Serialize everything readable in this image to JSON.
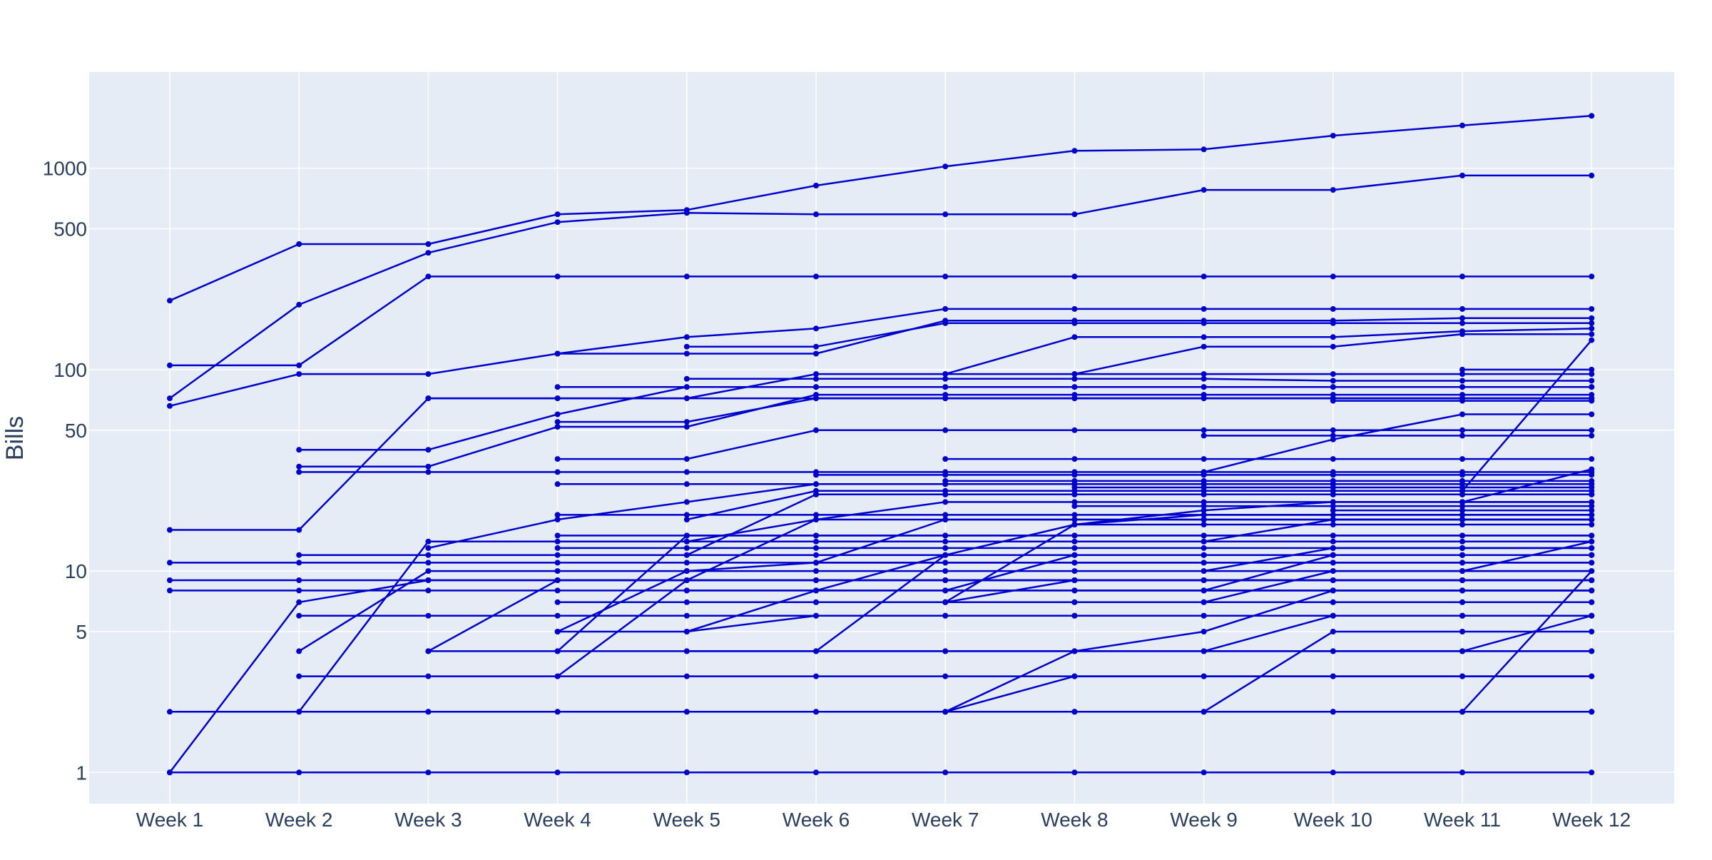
{
  "chart_data": {
    "type": "line",
    "title": "",
    "xlabel": "",
    "ylabel": "Bills",
    "y_scale": "log",
    "ylim": [
      0.7,
      3000
    ],
    "y_ticks": [
      1,
      5,
      10,
      50,
      100,
      500,
      1000
    ],
    "categories": [
      "Week 1",
      "Week 2",
      "Week 3",
      "Week 4",
      "Week 5",
      "Week 6",
      "Week 7",
      "Week 8",
      "Week 9",
      "Week 10",
      "Week 11",
      "Week 12"
    ],
    "grid": true,
    "legend": "none",
    "colors": {
      "line": "#0000cd",
      "plot_bg": "#e5ecf6",
      "grid": "#ffffff",
      "text": "#2a3f5f"
    },
    "series": [
      {
        "values": [
          220,
          420,
          420,
          590,
          620,
          820,
          1020,
          1220,
          1240,
          1450,
          1630,
          1820
        ]
      },
      {
        "values": [
          72,
          210,
          380,
          540,
          600,
          590,
          590,
          590,
          780,
          780,
          920,
          920
        ]
      },
      {
        "values": [
          105,
          105,
          290,
          290,
          290,
          290,
          290,
          290,
          290,
          290,
          290,
          290
        ]
      },
      {
        "values": [
          66,
          95,
          95,
          120,
          145,
          160,
          200,
          200,
          200,
          200,
          200,
          200
        ]
      },
      {
        "values": [
          null,
          null,
          null,
          120,
          120,
          120,
          175,
          175,
          175,
          175,
          180,
          180
        ]
      },
      {
        "values": [
          null,
          null,
          null,
          null,
          130,
          130,
          170,
          170,
          170,
          170,
          170,
          170
        ]
      },
      {
        "values": [
          null,
          null,
          null,
          null,
          null,
          null,
          95,
          145,
          145,
          145,
          155,
          160
        ]
      },
      {
        "values": [
          null,
          null,
          null,
          null,
          null,
          null,
          null,
          95,
          130,
          130,
          150,
          150
        ]
      },
      {
        "values": [
          null,
          null,
          72,
          72,
          72,
          95,
          95,
          95,
          95,
          95,
          95,
          95
        ]
      },
      {
        "values": [
          null,
          null,
          null,
          82,
          82,
          82,
          82,
          82,
          82,
          82,
          82,
          82
        ]
      },
      {
        "values": [
          null,
          40,
          40,
          60,
          82,
          82,
          82,
          82,
          82,
          82,
          82,
          82
        ]
      },
      {
        "values": [
          null,
          null,
          null,
          null,
          90,
          90,
          90,
          90,
          90,
          88,
          88,
          88
        ]
      },
      {
        "values": [
          null,
          33,
          33,
          52,
          52,
          75,
          75,
          75,
          75,
          75,
          75,
          75
        ]
      },
      {
        "values": [
          null,
          null,
          null,
          55,
          55,
          72,
          72,
          72,
          72,
          72,
          72,
          72
        ]
      },
      {
        "values": [
          null,
          null,
          null,
          null,
          null,
          72,
          72,
          72,
          72,
          72,
          72,
          72
        ]
      },
      {
        "values": [
          null,
          null,
          null,
          null,
          null,
          null,
          null,
          null,
          47,
          47,
          47,
          47
        ]
      },
      {
        "values": [
          null,
          null,
          null,
          null,
          null,
          null,
          36,
          36,
          36,
          36,
          36,
          36
        ]
      },
      {
        "values": [
          null,
          31,
          31,
          31,
          31,
          31,
          31,
          31,
          31,
          31,
          31,
          31
        ]
      },
      {
        "values": [
          null,
          null,
          null,
          36,
          36,
          50,
          50,
          50,
          50,
          50,
          50,
          50
        ]
      },
      {
        "values": [
          null,
          null,
          null,
          27,
          27,
          27,
          27,
          27,
          27,
          27,
          27,
          27
        ]
      },
      {
        "values": [
          16,
          16,
          72,
          72,
          72,
          72,
          72,
          72,
          72,
          72,
          72,
          72
        ]
      },
      {
        "values": [
          1,
          7,
          9,
          9,
          9,
          9,
          9,
          9,
          9,
          9,
          9,
          9
        ]
      },
      {
        "values": [
          null,
          2,
          2,
          2,
          2,
          2,
          2,
          2,
          2,
          2,
          2,
          2
        ]
      },
      {
        "values": [
          1,
          1,
          1,
          1,
          1,
          1,
          1,
          1,
          1,
          1,
          1,
          1
        ]
      },
      {
        "values": [
          9,
          9,
          9,
          9,
          9,
          9,
          9,
          9,
          9,
          9,
          9,
          9
        ]
      },
      {
        "values": [
          8,
          8,
          8,
          8,
          8,
          8,
          8,
          8,
          8,
          8,
          8,
          8
        ]
      },
      {
        "values": [
          11,
          11,
          11,
          11,
          11,
          11,
          11,
          11,
          11,
          11,
          11,
          11
        ]
      },
      {
        "values": [
          null,
          12,
          12,
          12,
          12,
          12,
          12,
          12,
          12,
          12,
          12,
          12
        ]
      },
      {
        "values": [
          null,
          6,
          6,
          6,
          6,
          6,
          6,
          6,
          6,
          6,
          6,
          6
        ]
      },
      {
        "values": [
          null,
          3,
          3,
          3,
          3,
          3,
          3,
          3,
          3,
          3,
          3,
          3
        ]
      },
      {
        "values": [
          null,
          4,
          10,
          10,
          10,
          10,
          10,
          10,
          10,
          10,
          10,
          10
        ]
      },
      {
        "values": [
          null,
          2,
          14,
          14,
          14,
          14,
          14,
          14,
          14,
          14,
          14,
          14
        ]
      },
      {
        "values": [
          null,
          null,
          4,
          4,
          4,
          4,
          4,
          4,
          4,
          4,
          4,
          4
        ]
      },
      {
        "values": [
          null,
          null,
          4,
          9,
          9,
          9,
          9,
          9,
          9,
          9,
          9,
          9
        ]
      },
      {
        "values": [
          2,
          2,
          2,
          2,
          2,
          2,
          2,
          2,
          2,
          2,
          2,
          2
        ]
      },
      {
        "values": [
          null,
          null,
          13,
          18,
          22,
          27,
          27,
          27,
          27,
          27,
          27,
          27
        ]
      },
      {
        "values": [
          null,
          null,
          null,
          3,
          9,
          18,
          22,
          22,
          22,
          22,
          22,
          22
        ]
      },
      {
        "values": [
          null,
          null,
          null,
          5,
          5,
          6,
          6,
          6,
          6,
          6,
          6,
          6
        ]
      },
      {
        "values": [
          null,
          null,
          null,
          4,
          15,
          15,
          15,
          15,
          15,
          15,
          15,
          15
        ]
      },
      {
        "values": [
          null,
          null,
          null,
          7,
          7,
          7,
          7,
          7,
          7,
          7,
          7,
          7
        ]
      },
      {
        "values": [
          null,
          null,
          null,
          19,
          19,
          19,
          19,
          19,
          19,
          19,
          19,
          19
        ]
      },
      {
        "values": [
          null,
          null,
          null,
          13,
          13,
          13,
          13,
          13,
          13,
          13,
          13,
          13
        ]
      },
      {
        "values": [
          null,
          null,
          null,
          15,
          15,
          15,
          15,
          15,
          15,
          15,
          15,
          15
        ]
      },
      {
        "values": [
          null,
          null,
          null,
          5,
          10,
          11,
          11,
          11,
          11,
          11,
          11,
          11
        ]
      },
      {
        "values": [
          null,
          null,
          null,
          null,
          4,
          4,
          4,
          4,
          5,
          8,
          8,
          8
        ]
      },
      {
        "values": [
          null,
          null,
          null,
          null,
          8,
          8,
          8,
          8,
          8,
          8,
          8,
          8
        ]
      },
      {
        "values": [
          null,
          null,
          null,
          null,
          18,
          25,
          25,
          25,
          25,
          25,
          25,
          25
        ]
      },
      {
        "values": [
          null,
          null,
          null,
          null,
          5,
          8,
          12,
          12,
          12,
          12,
          12,
          12
        ]
      },
      {
        "values": [
          null,
          null,
          null,
          null,
          12,
          24,
          24,
          24,
          24,
          24,
          24,
          24
        ]
      },
      {
        "values": [
          null,
          null,
          null,
          null,
          14,
          18,
          18,
          18,
          18,
          18,
          18,
          18
        ]
      },
      {
        "values": [
          null,
          null,
          null,
          null,
          null,
          4,
          12,
          12,
          12,
          12,
          12,
          12
        ]
      },
      {
        "values": [
          null,
          null,
          null,
          null,
          null,
          7,
          7,
          7,
          7,
          7,
          7,
          7
        ]
      },
      {
        "values": [
          null,
          null,
          null,
          null,
          null,
          11,
          18,
          18,
          18,
          18,
          18,
          18
        ]
      },
      {
        "values": [
          null,
          null,
          null,
          null,
          null,
          30,
          30,
          30,
          30,
          30,
          30,
          30
        ]
      },
      {
        "values": [
          null,
          null,
          null,
          null,
          null,
          24,
          24,
          24,
          24,
          24,
          24,
          24
        ]
      },
      {
        "values": [
          null,
          null,
          null,
          null,
          null,
          null,
          2,
          4,
          4,
          4,
          4,
          4
        ]
      },
      {
        "values": [
          null,
          null,
          null,
          null,
          null,
          null,
          2,
          3,
          3,
          3,
          3,
          3
        ]
      },
      {
        "values": [
          null,
          null,
          null,
          null,
          null,
          null,
          7,
          9,
          9,
          9,
          9,
          9
        ]
      },
      {
        "values": [
          null,
          null,
          null,
          null,
          null,
          null,
          7,
          17,
          19,
          19,
          19,
          19
        ]
      },
      {
        "values": [
          null,
          null,
          null,
          null,
          null,
          null,
          8,
          12,
          12,
          12,
          12,
          12
        ]
      },
      {
        "values": [
          null,
          null,
          null,
          null,
          null,
          null,
          12,
          17,
          20,
          22,
          22,
          22
        ]
      },
      {
        "values": [
          null,
          null,
          null,
          null,
          null,
          null,
          28,
          28,
          28,
          28,
          28,
          28
        ]
      },
      {
        "values": [
          null,
          null,
          null,
          null,
          null,
          null,
          null,
          8,
          8,
          8,
          8,
          8
        ]
      },
      {
        "values": [
          null,
          null,
          null,
          null,
          null,
          null,
          null,
          17,
          17,
          17,
          17,
          17
        ]
      },
      {
        "values": [
          null,
          null,
          null,
          null,
          null,
          null,
          null,
          26,
          26,
          26,
          26,
          26
        ]
      },
      {
        "values": [
          null,
          null,
          null,
          null,
          null,
          null,
          null,
          21,
          21,
          21,
          21,
          21
        ]
      },
      {
        "values": [
          null,
          null,
          null,
          null,
          null,
          null,
          null,
          2,
          2,
          2,
          2,
          2
        ]
      },
      {
        "values": [
          null,
          null,
          null,
          null,
          null,
          null,
          null,
          null,
          2,
          5,
          5,
          5
        ]
      },
      {
        "values": [
          null,
          null,
          null,
          null,
          null,
          null,
          null,
          null,
          4,
          6,
          6,
          6
        ]
      },
      {
        "values": [
          null,
          null,
          null,
          null,
          null,
          null,
          null,
          null,
          7,
          10,
          10,
          10
        ]
      },
      {
        "values": [
          null,
          null,
          null,
          null,
          null,
          null,
          null,
          null,
          8,
          12,
          12,
          12
        ]
      },
      {
        "values": [
          null,
          null,
          null,
          null,
          null,
          null,
          null,
          null,
          10,
          13,
          13,
          13
        ]
      },
      {
        "values": [
          null,
          null,
          null,
          null,
          null,
          null,
          null,
          null,
          14,
          18,
          18,
          18
        ]
      },
      {
        "values": [
          null,
          null,
          null,
          null,
          null,
          null,
          null,
          null,
          31,
          45,
          60,
          60
        ]
      },
      {
        "values": [
          null,
          null,
          null,
          null,
          null,
          null,
          null,
          null,
          null,
          20,
          20,
          20
        ]
      },
      {
        "values": [
          null,
          null,
          null,
          null,
          null,
          null,
          null,
          null,
          null,
          13,
          13,
          13
        ]
      },
      {
        "values": [
          null,
          null,
          null,
          null,
          null,
          null,
          null,
          null,
          null,
          24,
          24,
          24
        ]
      },
      {
        "values": [
          null,
          null,
          null,
          null,
          null,
          null,
          null,
          null,
          null,
          70,
          70,
          70
        ]
      },
      {
        "values": [
          null,
          null,
          null,
          null,
          null,
          null,
          null,
          null,
          null,
          null,
          2,
          10
        ]
      },
      {
        "values": [
          null,
          null,
          null,
          null,
          null,
          null,
          null,
          null,
          null,
          null,
          4,
          6
        ]
      },
      {
        "values": [
          null,
          null,
          null,
          null,
          null,
          null,
          null,
          null,
          null,
          null,
          10,
          14
        ]
      },
      {
        "values": [
          null,
          null,
          null,
          null,
          null,
          null,
          null,
          null,
          null,
          null,
          22,
          32
        ]
      },
      {
        "values": [
          null,
          null,
          null,
          null,
          null,
          null,
          null,
          null,
          null,
          null,
          25,
          140
        ]
      },
      {
        "values": [
          null,
          null,
          null,
          null,
          null,
          null,
          null,
          null,
          null,
          null,
          100,
          100
        ]
      }
    ]
  }
}
